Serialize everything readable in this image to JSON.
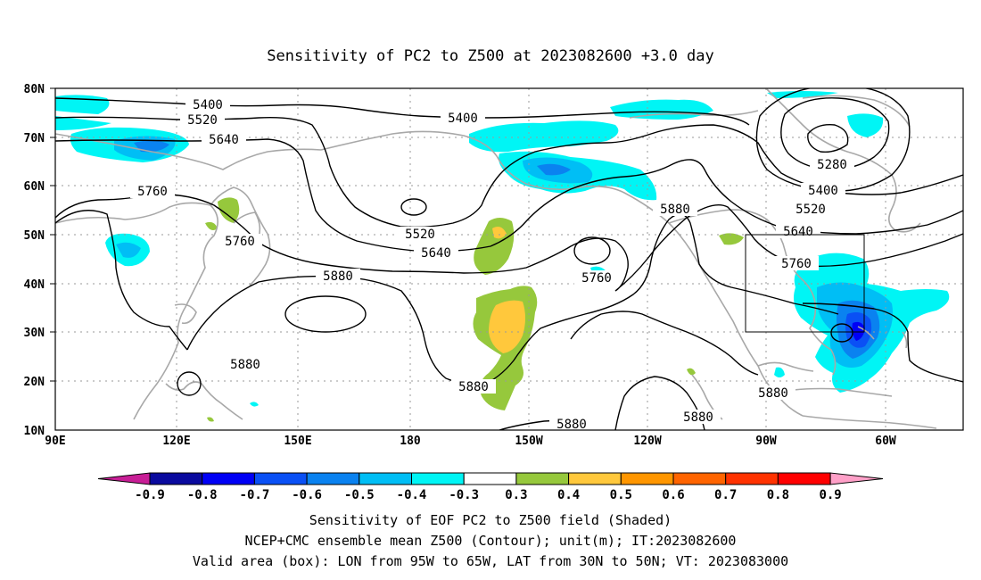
{
  "title": "Sensitivity of PC2 to Z500 at 2023082600 +3.0 day",
  "lat_labels": [
    "80N",
    "70N",
    "60N",
    "50N",
    "40N",
    "30N",
    "20N",
    "10N"
  ],
  "lon_labels": [
    "90E",
    "120E",
    "150E",
    "180",
    "150W",
    "120W",
    "90W",
    "60W"
  ],
  "contour_labels": [
    {
      "text": "5400"
    },
    {
      "text": "5520"
    },
    {
      "text": "5640"
    },
    {
      "text": "5400"
    },
    {
      "text": "5280"
    },
    {
      "text": "5400"
    },
    {
      "text": "5520"
    },
    {
      "text": "5640"
    },
    {
      "text": "5760"
    },
    {
      "text": "5760"
    },
    {
      "text": "5520"
    },
    {
      "text": "5640"
    },
    {
      "text": "5760"
    },
    {
      "text": "5880"
    },
    {
      "text": "5760"
    },
    {
      "text": "5880"
    },
    {
      "text": "5880"
    },
    {
      "text": "5880"
    },
    {
      "text": "5880"
    },
    {
      "text": "5880"
    },
    {
      "text": "5880"
    }
  ],
  "colorbar": {
    "colors": [
      "#0a0a9e",
      "#0000f5",
      "#0a50f5",
      "#0a82f0",
      "#00bef5",
      "#00f5f5",
      "#ffffff",
      "#96c83c",
      "#ffc83c",
      "#ff9600",
      "#ff6400",
      "#ff3200",
      "#ff0000"
    ],
    "left_arrow_color": "#c81e96",
    "right_arrow_color": "#ffa0c8",
    "labels": [
      "-0.9",
      "-0.8",
      "-0.7",
      "-0.6",
      "-0.5",
      "-0.4",
      "-0.3",
      "0.3",
      "0.4",
      "0.5",
      "0.6",
      "0.7",
      "0.8",
      "0.9"
    ]
  },
  "caption": [
    "Sensitivity of EOF PC2 to Z500 field (Shaded)",
    "NCEP+CMC ensemble mean Z500 (Contour); unit(m); IT:2023082600",
    "Valid area (box): LON from 95W to 65W, LAT from 30N to 50N; VT: 2023083000"
  ],
  "valid_box": {
    "lon_west": -95,
    "lon_east": -65,
    "lat_south": 30,
    "lat_north": 50
  }
}
